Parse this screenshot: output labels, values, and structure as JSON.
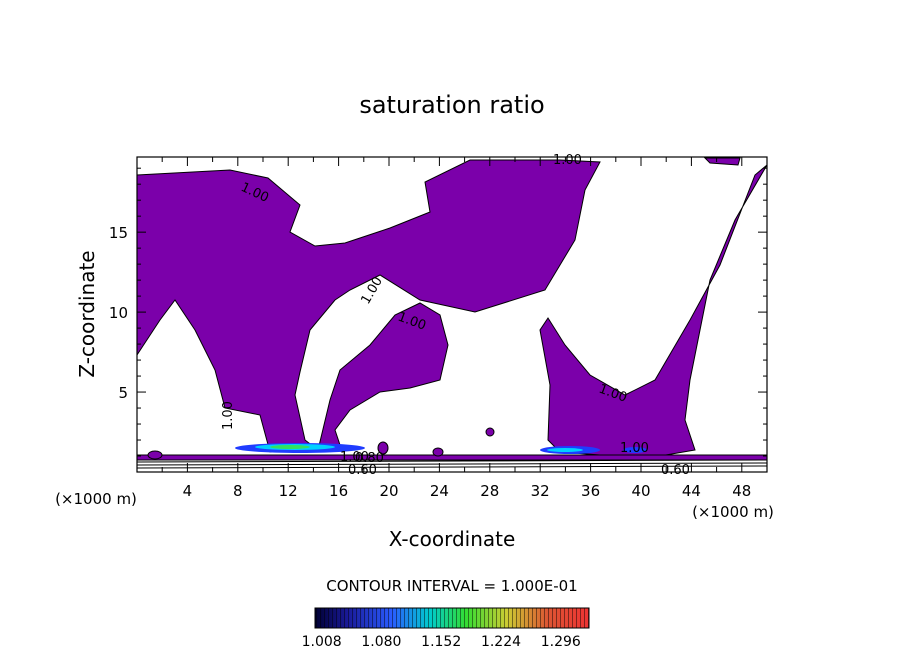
{
  "chart_data": {
    "type": "heatmap",
    "title": "saturation ratio",
    "xlabel": "X-coordinate",
    "ylabel": "Z-coordinate",
    "x_unit": "(×1000 m)",
    "x_unit_right": "(×1000 m)",
    "xlim": [
      0,
      50
    ],
    "ylim": [
      0,
      19.7
    ],
    "x_ticks": [
      4,
      8,
      12,
      16,
      20,
      24,
      28,
      32,
      36,
      40,
      44,
      48
    ],
    "y_ticks": [
      5,
      10,
      15
    ],
    "contour_interval_text": "CONTOUR INTERVAL = 1.000E-01",
    "contour_labels": [
      "1.00",
      "1.00",
      "1.00",
      "1.00",
      "1.00",
      "1.00",
      "1.00",
      "1.00",
      "0.80",
      "0.60",
      "0.60"
    ],
    "colorbar_ticks": [
      "1.008",
      "1.080",
      "1.152",
      "1.224",
      "1.296"
    ],
    "colorbar_range": [
      1.0,
      1.33
    ],
    "colors": {
      "region": "#7b00aa",
      "blue": "#1f3cff",
      "cyan": "#00d0ff",
      "green": "#30e060",
      "contour": "#000000"
    }
  }
}
